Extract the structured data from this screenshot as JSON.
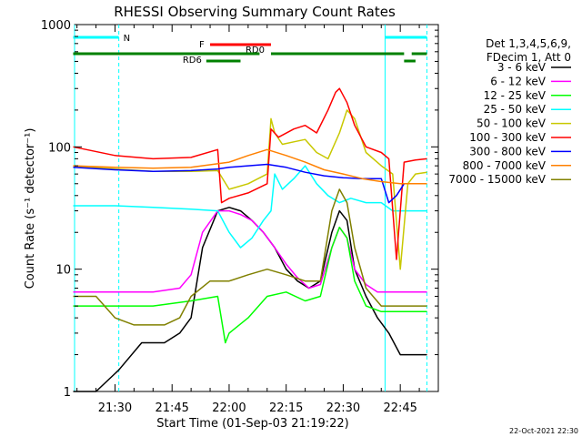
{
  "chart_data": {
    "type": "line",
    "title": "RHESSI Observing Summary Count Rates",
    "xlabel": "Start Time (01-Sep-03 21:19:22)",
    "ylabel": "Count Rate (s⁻¹ detector⁻¹)",
    "y_scale": "log",
    "ylim": [
      1,
      1000
    ],
    "xlim": [
      "21:19:22",
      "22:55:00"
    ],
    "x_ticks": [
      "21:30",
      "21:45",
      "22:00",
      "22:15",
      "22:30",
      "22:45"
    ],
    "y_ticks": [
      "1",
      "10",
      "100",
      "1000"
    ],
    "grid": false,
    "legend_position": "right",
    "legend_header": [
      "Det 1,3,4,5,6,9,",
      "FDecim 1, Att 0"
    ],
    "footer_date": "22-Oct-2021 22:30",
    "series": [
      {
        "name": "3 - 6 keV",
        "color": "#000000",
        "x": [
          "21:19",
          "21:25",
          "21:31",
          "21:37",
          "21:43",
          "21:47",
          "21:50",
          "21:53",
          "21:57",
          "22:00",
          "22:03",
          "22:06",
          "22:09",
          "22:12",
          "22:15",
          "22:18",
          "22:21",
          "22:24",
          "22:27",
          "22:29",
          "22:31",
          "22:33",
          "22:36",
          "22:39",
          "22:42",
          "22:45",
          "22:48",
          "22:52"
        ],
        "y": [
          1,
          1,
          1.5,
          2.5,
          2.5,
          3,
          4,
          15,
          30,
          32,
          30,
          25,
          20,
          15,
          10,
          8,
          7,
          8,
          20,
          30,
          25,
          10,
          6,
          4,
          3,
          2,
          2,
          2
        ]
      },
      {
        "name": "6 - 12 keV",
        "color": "#ff00ff",
        "x": [
          "21:19",
          "21:30",
          "21:40",
          "21:47",
          "21:50",
          "21:53",
          "21:57",
          "22:00",
          "22:03",
          "22:06",
          "22:09",
          "22:12",
          "22:15",
          "22:18",
          "22:21",
          "22:24",
          "22:27",
          "22:29",
          "22:31",
          "22:33",
          "22:36",
          "22:39",
          "22:42",
          "22:45",
          "22:48",
          "22:52"
        ],
        "y": [
          6.5,
          6.5,
          6.5,
          7,
          9,
          20,
          30,
          30,
          28,
          25,
          20,
          15,
          11,
          8.5,
          7,
          7.5,
          15,
          22,
          18,
          10,
          7.5,
          6.5,
          6.5,
          6.5,
          6.5,
          6.5
        ]
      },
      {
        "name": "12 - 25 keV",
        "color": "#00ff00",
        "x": [
          "21:19",
          "21:30",
          "21:40",
          "21:50",
          "21:57",
          "21:59",
          "22:00",
          "22:05",
          "22:10",
          "22:15",
          "22:20",
          "22:24",
          "22:27",
          "22:29",
          "22:31",
          "22:33",
          "22:36",
          "22:40",
          "22:44",
          "22:47",
          "22:52"
        ],
        "y": [
          5,
          5,
          5,
          5.5,
          6,
          2.5,
          3,
          4,
          6,
          6.5,
          5.5,
          6,
          15,
          22,
          18,
          8,
          5,
          4.5,
          4.5,
          4.5,
          4.5
        ]
      },
      {
        "name": "25 - 50 keV",
        "color": "#00ffff",
        "x": [
          "21:19",
          "21:30",
          "21:40",
          "21:50",
          "21:57",
          "22:00",
          "22:03",
          "22:06",
          "22:09",
          "22:11",
          "22:12",
          "22:14",
          "22:17",
          "22:20",
          "22:23",
          "22:26",
          "22:29",
          "22:32",
          "22:36",
          "22:40",
          "22:43",
          "22:46",
          "22:52"
        ],
        "y": [
          33,
          33,
          32,
          31,
          30,
          20,
          15,
          18,
          25,
          30,
          60,
          45,
          55,
          70,
          50,
          40,
          35,
          38,
          35,
          35,
          30,
          30,
          30
        ]
      },
      {
        "name": "50 - 100 keV",
        "color": "#c8c800",
        "x": [
          "21:19",
          "21:30",
          "21:40",
          "21:50",
          "21:57",
          "22:00",
          "22:05",
          "22:10",
          "22:11",
          "22:12",
          "22:14",
          "22:17",
          "22:20",
          "22:23",
          "22:26",
          "22:29",
          "22:31",
          "22:33",
          "22:36",
          "22:40",
          "22:43",
          "22:45",
          "22:47",
          "22:49",
          "22:52"
        ],
        "y": [
          70,
          66,
          63,
          63,
          64,
          45,
          50,
          60,
          170,
          130,
          105,
          110,
          115,
          90,
          80,
          130,
          200,
          170,
          90,
          70,
          60,
          10,
          50,
          60,
          62
        ]
      },
      {
        "name": "100 - 300 keV",
        "color": "#ff0000",
        "x": [
          "21:19",
          "21:30",
          "21:40",
          "21:50",
          "21:57",
          "21:58",
          "22:00",
          "22:05",
          "22:10",
          "22:11",
          "22:13",
          "22:17",
          "22:20",
          "22:23",
          "22:26",
          "22:28",
          "22:29",
          "22:31",
          "22:33",
          "22:36",
          "22:40",
          "22:42",
          "22:44",
          "22:46",
          "22:49",
          "22:52"
        ],
        "y": [
          100,
          85,
          80,
          82,
          95,
          35,
          38,
          42,
          50,
          140,
          120,
          140,
          150,
          130,
          200,
          280,
          300,
          230,
          150,
          100,
          90,
          80,
          12,
          75,
          78,
          80
        ]
      },
      {
        "name": "300 - 800 keV",
        "color": "#0000ff",
        "x": [
          "21:19",
          "21:30",
          "21:40",
          "21:50",
          "21:57",
          "22:00",
          "22:05",
          "22:10",
          "22:15",
          "22:20",
          "22:25",
          "22:30",
          "22:35",
          "22:40",
          "22:42",
          "22:44",
          "22:46",
          "22:48",
          "22:52"
        ],
        "y": [
          68,
          65,
          63,
          64,
          66,
          68,
          70,
          72,
          68,
          62,
          58,
          56,
          55,
          55,
          35,
          40,
          50,
          50,
          50
        ]
      },
      {
        "name": "800 - 7000 keV",
        "color": "#ff8000",
        "x": [
          "21:19",
          "21:30",
          "21:40",
          "21:50",
          "22:00",
          "22:05",
          "22:10",
          "22:15",
          "22:20",
          "22:25",
          "22:30",
          "22:35",
          "22:40",
          "22:45",
          "22:52"
        ],
        "y": [
          70,
          68,
          67,
          68,
          75,
          85,
          95,
          85,
          75,
          65,
          60,
          55,
          52,
          50,
          50
        ]
      },
      {
        "name": "7000 - 15000 keV",
        "color": "#808000",
        "x": [
          "21:19",
          "21:25",
          "21:30",
          "21:35",
          "21:43",
          "21:47",
          "21:50",
          "21:55",
          "22:00",
          "22:05",
          "22:10",
          "22:15",
          "22:20",
          "22:24",
          "22:27",
          "22:29",
          "22:31",
          "22:33",
          "22:36",
          "22:40",
          "22:45",
          "22:52"
        ],
        "y": [
          6,
          6,
          4,
          3.5,
          3.5,
          4,
          6,
          8,
          8,
          9,
          10,
          9,
          8,
          8,
          30,
          45,
          35,
          15,
          7,
          5,
          5,
          5
        ]
      }
    ],
    "annotations": [
      {
        "label": "N",
        "color": "#00ffff",
        "x_start": "21:19",
        "x_end": "21:31",
        "row": 0
      },
      {
        "label": "",
        "color": "#00ffff",
        "x_start": "22:41",
        "x_end": "22:52",
        "row": 0
      },
      {
        "label": "F",
        "color": "#ff0000",
        "x_start": "21:55",
        "x_end": "22:11",
        "row": 1
      },
      {
        "label": "RD0",
        "color": "#008000",
        "x_start": "22:11",
        "x_end": "22:46",
        "row": 2
      },
      {
        "label": "",
        "color": "#008000",
        "x_start": "21:19",
        "x_end": "22:08",
        "row": 2
      },
      {
        "label": "",
        "color": "#008000",
        "x_start": "22:48",
        "x_end": "22:52",
        "row": 2
      },
      {
        "label": "RD6",
        "color": "#008000",
        "x_start": "21:54",
        "x_end": "22:03",
        "row": 3
      },
      {
        "label": "",
        "color": "#008000",
        "x_start": "22:46",
        "x_end": "22:49",
        "row": 3
      }
    ],
    "vertical_markers": [
      {
        "x": "21:19:22",
        "color": "#00ffff",
        "style": "solid"
      },
      {
        "x": "21:31",
        "color": "#00ffff",
        "style": "dashed"
      },
      {
        "x": "22:41",
        "color": "#00ffff",
        "style": "solid"
      },
      {
        "x": "22:52",
        "color": "#00ffff",
        "style": "dashed"
      }
    ]
  }
}
